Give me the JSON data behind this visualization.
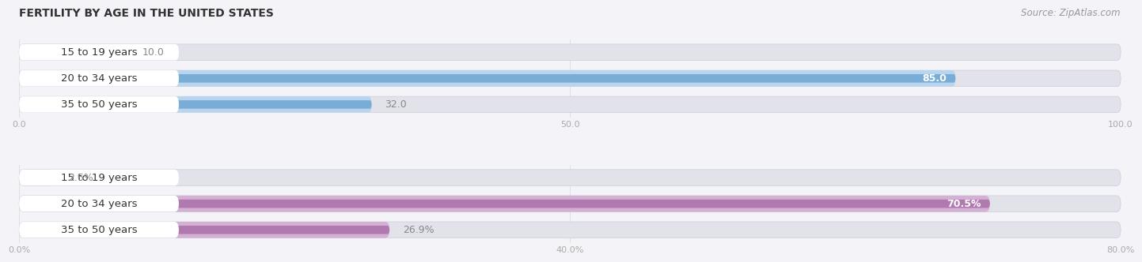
{
  "title": "FERTILITY BY AGE IN THE UNITED STATES",
  "source": "Source: ZipAtlas.com",
  "top_chart": {
    "categories": [
      "15 to 19 years",
      "20 to 34 years",
      "35 to 50 years"
    ],
    "values": [
      10.0,
      85.0,
      32.0
    ],
    "value_labels": [
      "10.0",
      "85.0",
      "32.0"
    ],
    "xlim": [
      0,
      100
    ],
    "xticks": [
      0.0,
      50.0,
      100.0
    ],
    "xtick_labels": [
      "0.0",
      "50.0",
      "100.0"
    ],
    "bar_color_outer": "#b8d4ee",
    "bar_color_inner": "#7aadd6",
    "label_threshold": 80,
    "label_color_inside": "#ffffff",
    "label_color_outside": "#888888"
  },
  "bottom_chart": {
    "categories": [
      "15 to 19 years",
      "20 to 34 years",
      "35 to 50 years"
    ],
    "values": [
      2.6,
      70.5,
      26.9
    ],
    "value_labels": [
      "2.6%",
      "70.5%",
      "26.9%"
    ],
    "xlim": [
      0,
      80
    ],
    "xticks": [
      0.0,
      40.0,
      80.0
    ],
    "xtick_labels": [
      "0.0%",
      "40.0%",
      "80.0%"
    ],
    "bar_color_outer": "#d4b0d4",
    "bar_color_inner": "#b07ab0",
    "label_threshold": 60,
    "label_color_inside": "#ffffff",
    "label_color_outside": "#888888"
  },
  "fig_bg": "#f4f4f8",
  "panel_bg": "#f4f4f8",
  "bar_track_color": "#e2e2ea",
  "white_label_bg": "#ffffff",
  "title_color": "#333333",
  "source_color": "#999999",
  "tick_color": "#aaaaaa",
  "grid_color": "#e0e0e8",
  "category_font_size": 9.5,
  "value_font_size": 9,
  "title_font_size": 10,
  "source_font_size": 8.5
}
